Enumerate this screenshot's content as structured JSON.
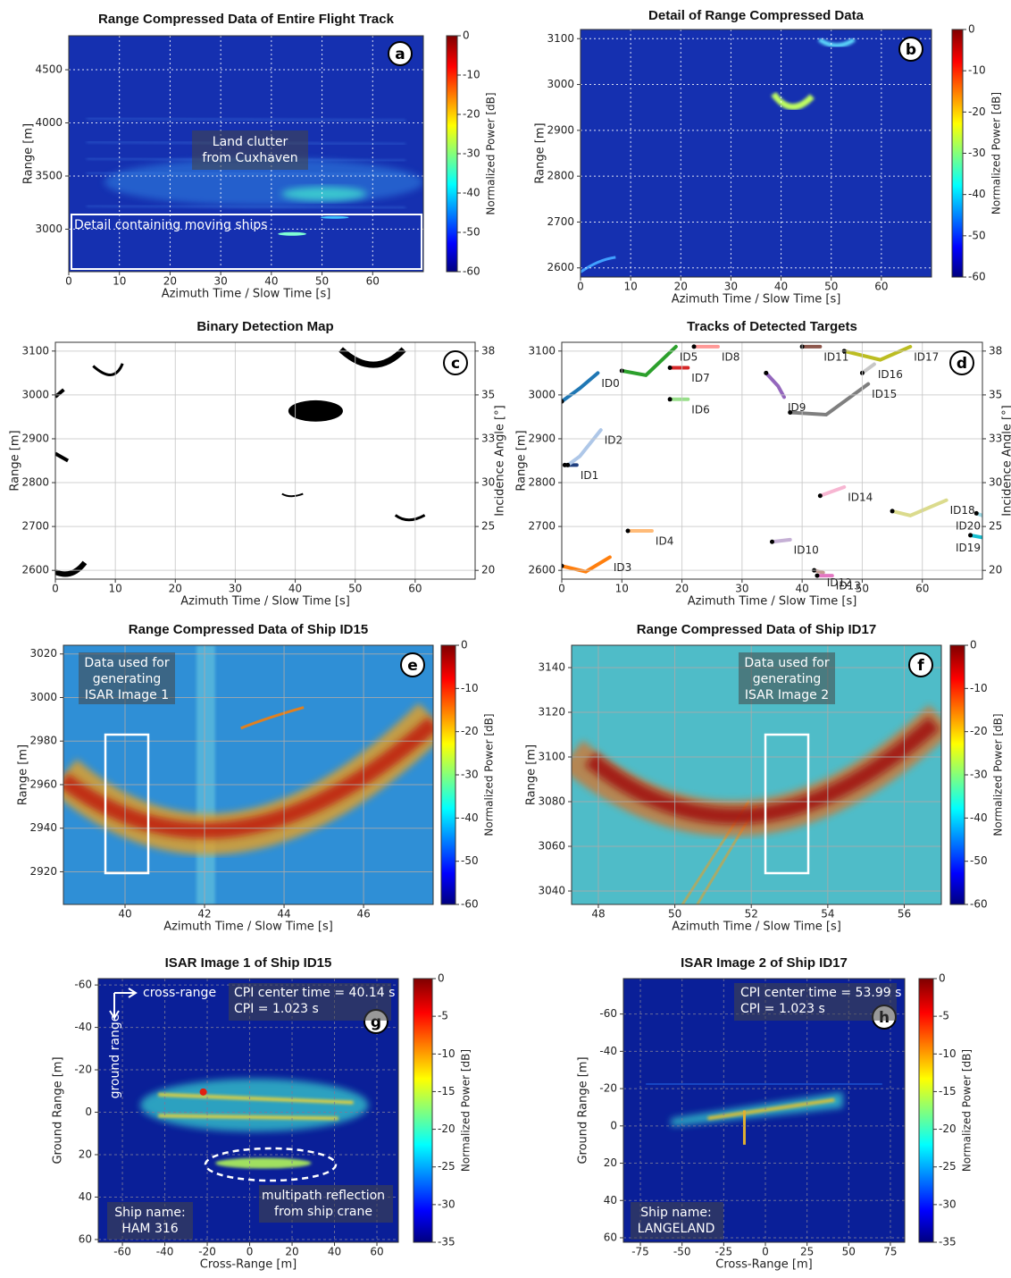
{
  "chart_data": [
    {
      "type": "heatmap",
      "title": "Range Compressed Data of Entire Flight Track",
      "panel_label": "a",
      "xlabel": "Azimuth Time / Slow Time [s]",
      "ylabel": "Range [m]",
      "xlim": [
        0,
        70
      ],
      "xticks": [
        0,
        10,
        20,
        30,
        40,
        50,
        60
      ],
      "ylim": [
        2600,
        4820
      ],
      "yticks": [
        3000,
        3500,
        4000,
        4500
      ],
      "grid": true,
      "colorbar": {
        "label": "Normalized Power [dB]",
        "colormap": "jet",
        "clim": [
          -60,
          0
        ],
        "ticks": [
          0,
          -10,
          -20,
          -30,
          -40,
          -50,
          -60
        ]
      },
      "annotations": [
        [
          "Land clutter",
          "from Cuxhaven"
        ],
        [
          "Detail containing moving ships"
        ]
      ]
    },
    {
      "type": "heatmap",
      "title": "Detail of Range Compressed Data",
      "panel_label": "b",
      "xlabel": "Azimuth Time / Slow Time [s]",
      "ylabel": "Range [m]",
      "xlim": [
        0,
        70
      ],
      "xticks": [
        0,
        10,
        20,
        30,
        40,
        50,
        60
      ],
      "ylim": [
        2580,
        3120
      ],
      "yticks": [
        2600,
        2700,
        2800,
        2900,
        3000,
        3100
      ],
      "grid": true,
      "colorbar": {
        "label": "Normalized Power [dB]",
        "colormap": "jet",
        "clim": [
          -60,
          0
        ],
        "ticks": [
          0,
          -10,
          -20,
          -30,
          -40,
          -50,
          -60
        ]
      },
      "annotations": []
    },
    {
      "type": "binary",
      "title": "Binary Detection Map",
      "panel_label": "c",
      "xlabel": "Azimuth Time / Slow Time [s]",
      "ylabel": "Range [m]",
      "y2label": "Incidence Angle [°]",
      "xlim": [
        0,
        70
      ],
      "xticks": [
        0,
        10,
        20,
        30,
        40,
        50,
        60
      ],
      "ylim": [
        2580,
        3120
      ],
      "yticks": [
        2600,
        2700,
        2800,
        2900,
        3000,
        3100
      ],
      "y2ticks": [
        20,
        25,
        30,
        33,
        35,
        38
      ],
      "grid": true,
      "annotations": []
    },
    {
      "type": "line",
      "title": "Tracks of Detected Targets",
      "panel_label": "d",
      "xlabel": "Azimuth Time / Slow Time [s]",
      "ylabel": "Range [m]",
      "y2label": "Incidence Angle [°]",
      "xlim": [
        0,
        70
      ],
      "xticks": [
        0,
        10,
        20,
        30,
        40,
        50,
        60
      ],
      "ylim": [
        2580,
        3120
      ],
      "yticks": [
        2600,
        2700,
        2800,
        2900,
        3000,
        3100
      ],
      "y2ticks": [
        20,
        25,
        30,
        33,
        35,
        38
      ],
      "grid": true,
      "annotations": [],
      "series": [
        {
          "name": "ID0",
          "color": "#1f77b4",
          "x": [
            0,
            3,
            6
          ],
          "values": [
            2985,
            3015,
            3050
          ]
        },
        {
          "name": "ID1",
          "color": "#1f3f7f",
          "x": [
            0.5,
            2.5
          ],
          "values": [
            2840,
            2840
          ]
        },
        {
          "name": "ID2",
          "color": "#aec7e8",
          "x": [
            1,
            3,
            6.5
          ],
          "values": [
            2840,
            2860,
            2920
          ]
        },
        {
          "name": "ID3",
          "color": "#ff7f0e",
          "x": [
            0,
            4,
            8
          ],
          "values": [
            2610,
            2597,
            2630
          ]
        },
        {
          "name": "ID4",
          "color": "#ffbb78",
          "x": [
            11,
            15
          ],
          "values": [
            2690,
            2690
          ]
        },
        {
          "name": "ID5",
          "color": "#2ca02c",
          "x": [
            10,
            14,
            19
          ],
          "values": [
            3055,
            3045,
            3110
          ]
        },
        {
          "name": "ID6",
          "color": "#98df8a",
          "x": [
            18,
            21
          ],
          "values": [
            2990,
            2990
          ]
        },
        {
          "name": "ID7",
          "color": "#d62728",
          "x": [
            18,
            21
          ],
          "values": [
            3062,
            3062
          ]
        },
        {
          "name": "ID8",
          "color": "#ff9896",
          "x": [
            22,
            26
          ],
          "values": [
            3110,
            3110
          ]
        },
        {
          "name": "ID9",
          "color": "#9467bd",
          "x": [
            34,
            36,
            37
          ],
          "values": [
            3050,
            3020,
            2995
          ]
        },
        {
          "name": "ID10",
          "color": "#c5b0d5",
          "x": [
            35,
            38
          ],
          "values": [
            2665,
            2670
          ]
        },
        {
          "name": "ID11",
          "color": "#8c564b",
          "x": [
            40,
            43
          ],
          "values": [
            3110,
            3110
          ]
        },
        {
          "name": "ID12",
          "color": "#c49c94",
          "x": [
            42,
            43.5
          ],
          "values": [
            2600,
            2595
          ]
        },
        {
          "name": "ID13",
          "color": "#e377c2",
          "x": [
            42.5,
            45
          ],
          "values": [
            2588,
            2588
          ]
        },
        {
          "name": "ID14",
          "color": "#f7b6d2",
          "x": [
            43,
            47
          ],
          "values": [
            2770,
            2790
          ]
        },
        {
          "name": "ID15",
          "color": "#7f7f7f",
          "x": [
            38,
            44,
            51
          ],
          "values": [
            2960,
            2955,
            3025
          ]
        },
        {
          "name": "ID16",
          "color": "#c7c7c7",
          "x": [
            50,
            52
          ],
          "values": [
            3050,
            3070
          ]
        },
        {
          "name": "ID17",
          "color": "#bcbd22",
          "x": [
            47,
            53,
            58
          ],
          "values": [
            3100,
            3080,
            3110
          ]
        },
        {
          "name": "ID18",
          "color": "#dbdb8d",
          "x": [
            55,
            58,
            64
          ],
          "values": [
            2735,
            2725,
            2760
          ]
        },
        {
          "name": "ID19",
          "color": "#17becf",
          "x": [
            68,
            70
          ],
          "values": [
            2680,
            2675
          ]
        },
        {
          "name": "ID20",
          "color": "#9edae5",
          "x": [
            69,
            70
          ],
          "values": [
            2730,
            2725
          ]
        }
      ]
    },
    {
      "type": "heatmap",
      "title": "Range Compressed Data of Ship ID15",
      "panel_label": "e",
      "xlabel": "Azimuth Time / Slow Time [s]",
      "ylabel": "Range [m]",
      "xlim": [
        38.45,
        47.75
      ],
      "xticks": [
        40,
        42,
        44,
        46
      ],
      "ylim": [
        2905,
        3024
      ],
      "yticks": [
        2920,
        2940,
        2960,
        2980,
        3000,
        3020
      ],
      "grid": true,
      "colorbar": {
        "label": "Normalized Power [dB]",
        "colormap": "jet",
        "clim": [
          -60,
          0
        ],
        "ticks": [
          0,
          -10,
          -20,
          -30,
          -40,
          -50,
          -60
        ]
      },
      "annotations": [
        [
          "Data used for",
          "generating",
          "ISAR Image 1"
        ]
      ]
    },
    {
      "type": "heatmap",
      "title": "Range Compressed Data of Ship ID17",
      "panel_label": "f",
      "xlabel": "Azimuth Time / Slow Time [s]",
      "ylabel": "Range [m]",
      "xlim": [
        47.3,
        56.97
      ],
      "xticks": [
        48,
        50,
        52,
        54,
        56
      ],
      "ylim": [
        3034,
        3150
      ],
      "yticks": [
        3040,
        3060,
        3080,
        3100,
        3120,
        3140
      ],
      "grid": true,
      "colorbar": {
        "label": "Normalized Power [dB]",
        "colormap": "jet",
        "clim": [
          -60,
          0
        ],
        "ticks": [
          0,
          -10,
          -20,
          -30,
          -40,
          -50,
          -60
        ]
      },
      "annotations": [
        [
          "Data used for",
          "generating",
          "ISAR Image 2"
        ]
      ]
    },
    {
      "type": "heatmap",
      "title": "ISAR Image 1 of Ship ID15",
      "panel_label": "g",
      "xlabel": "Cross-Range [m]",
      "ylabel": "Ground Range [m]",
      "xlim": [
        -71.4,
        70.1
      ],
      "xticks": [
        -60,
        -40,
        -20,
        0,
        20,
        40,
        60
      ],
      "ylim": [
        -63,
        61.3
      ],
      "yticks": [
        -60,
        -40,
        -20,
        0,
        20,
        40,
        60
      ],
      "yinvert": true,
      "grid": true,
      "colorbar": {
        "label": "Normalized Power [dB]",
        "colormap": "jet",
        "clim": [
          -35,
          0
        ],
        "ticks": [
          0,
          -5,
          -10,
          -15,
          -20,
          -25,
          -30,
          -35
        ]
      },
      "annotations": [
        [
          "cross-range"
        ],
        [
          "ground range"
        ],
        [
          "CPI center time = 40.14 s",
          "CPI = 1.023 s"
        ],
        [
          "multipath reflection",
          "from ship crane"
        ],
        [
          "Ship name:",
          "HAM 316"
        ]
      ]
    },
    {
      "type": "heatmap",
      "title": "ISAR Image 2 of Ship ID17",
      "panel_label": "h",
      "xlabel": "Cross-Range [m]",
      "ylabel": "Ground Range [m]",
      "xlim": [
        -85.2,
        83.6
      ],
      "xticks": [
        -75,
        -50,
        -25,
        0,
        25,
        50,
        75
      ],
      "ylim": [
        -79,
        62.4
      ],
      "yticks": [
        -60,
        -40,
        -20,
        0,
        20,
        40,
        60
      ],
      "yinvert": true,
      "grid": true,
      "colorbar": {
        "label": "Normalized Power [dB]",
        "colormap": "jet",
        "clim": [
          -35,
          0
        ],
        "ticks": [
          0,
          -5,
          -10,
          -15,
          -20,
          -25,
          -30,
          -35
        ]
      },
      "annotations": [
        [
          "CPI center time = 53.99 s",
          "CPI = 1.023 s"
        ],
        [
          "Ship name:",
          "LANGELAND"
        ]
      ]
    }
  ]
}
